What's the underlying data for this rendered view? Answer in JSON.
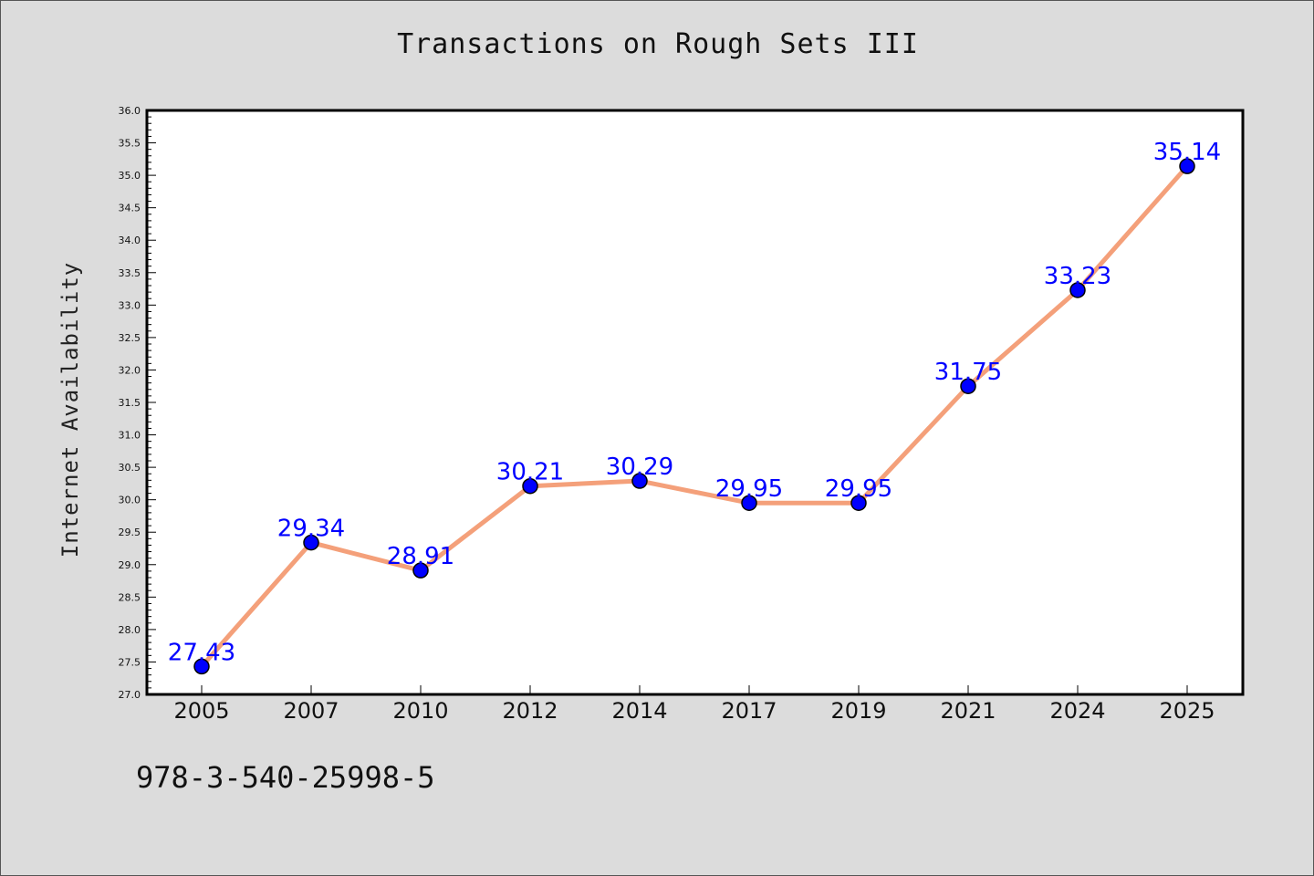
{
  "title": "Transactions on Rough Sets III",
  "footnote": "978-3-540-25998-5",
  "colors": {
    "background": "#dcdcdc",
    "plot_background": "#ffffff",
    "line": "#f4a07a",
    "marker": "#0000ff",
    "data_label": "#0000ff"
  },
  "chart_data": {
    "type": "line",
    "title": "Transactions on Rough Sets III",
    "xlabel": "",
    "ylabel": "Internet Availability",
    "categories": [
      "2005",
      "2007",
      "2010",
      "2012",
      "2014",
      "2017",
      "2019",
      "2021",
      "2024",
      "2025"
    ],
    "series": [
      {
        "values": [
          27.43,
          29.34,
          28.91,
          30.21,
          30.29,
          29.95,
          29.95,
          31.75,
          33.23,
          35.14
        ]
      }
    ],
    "data_labels": [
      "27.43",
      "29.34",
      "28.91",
      "30.21",
      "30.29",
      "29.95",
      "29.95",
      "31.75",
      "33.23",
      "35.14"
    ],
    "ylim": [
      27.0,
      36.0
    ],
    "yticks": [
      "27.0",
      "27.5",
      "28.0",
      "28.5",
      "29.0",
      "29.5",
      "30.0",
      "30.5",
      "31.0",
      "31.5",
      "32.0",
      "32.5",
      "33.0",
      "33.5",
      "34.0",
      "34.5",
      "35.0",
      "35.5",
      "36.0"
    ],
    "grid": false,
    "legend": "none"
  }
}
